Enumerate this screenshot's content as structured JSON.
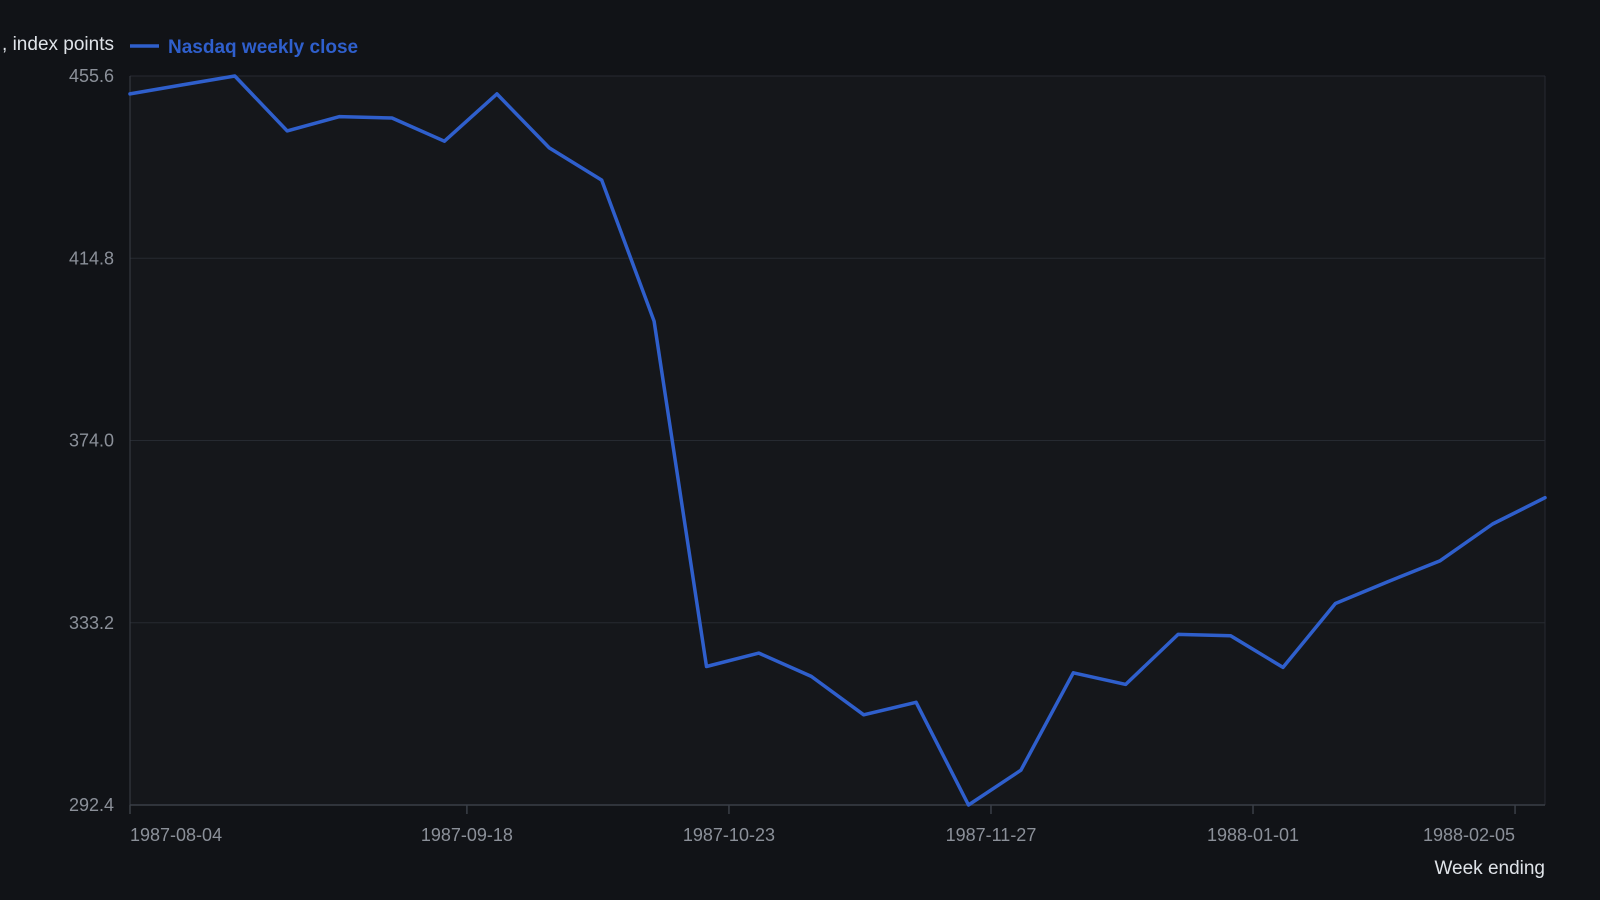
{
  "chart_data": {
    "type": "line",
    "title": "",
    "xlabel": "Week ending",
    "ylabel": "Close, index points",
    "ylabel_visible": ", index points",
    "ylim": [
      292.4,
      455.6
    ],
    "y_ticks": [
      "292.4",
      "333.2",
      "374.0",
      "414.8",
      "455.6"
    ],
    "x_ticks": [
      "1987-08-04",
      "1987-09-18",
      "1987-10-23",
      "1987-11-27",
      "1988-01-01",
      "1988-02-05"
    ],
    "grid": "horizontal",
    "legend": {
      "position": "top-left"
    },
    "colors": {
      "background": "#111317",
      "plot_background": "#15171b",
      "line": "#2f5fcc",
      "grid": "#262a31",
      "axis": "#3a3f47",
      "tick_text": "#8b9099",
      "title_text": "#dfe3e8"
    },
    "series": [
      {
        "name": "Nasdaq weekly close",
        "x": [
          "1987-08-04",
          "1987-08-11",
          "1987-08-18",
          "1987-08-25",
          "1987-09-01",
          "1987-09-08",
          "1987-09-15",
          "1987-09-22",
          "1987-09-29",
          "1987-10-06",
          "1987-10-13",
          "1987-10-20",
          "1987-10-27",
          "1987-11-03",
          "1987-11-10",
          "1987-11-17",
          "1987-11-24",
          "1987-12-01",
          "1987-12-08",
          "1987-12-15",
          "1987-12-22",
          "1987-12-29",
          "1988-01-05",
          "1988-01-12",
          "1988-01-19",
          "1988-01-26",
          "1988-02-02",
          "1988-02-09"
        ],
        "values": [
          451.6,
          453.6,
          455.6,
          443.3,
          446.5,
          446.2,
          441.0,
          451.6,
          439.5,
          432.3,
          400.7,
          323.4,
          326.4,
          321.2,
          312.6,
          315.4,
          292.4,
          300.2,
          322.0,
          319.4,
          330.6,
          330.3,
          323.2,
          337.5,
          342.4,
          347.1,
          355.3,
          361.2
        ]
      }
    ]
  }
}
